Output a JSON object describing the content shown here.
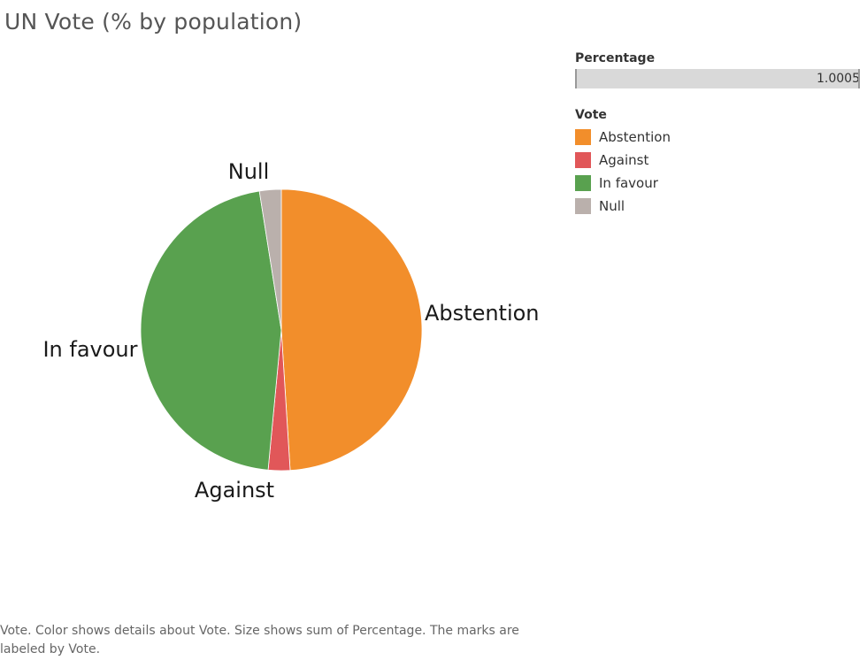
{
  "title": "UN Vote (% by population)",
  "chart_data": {
    "type": "pie",
    "title": "UN Vote (% by population)",
    "slices": [
      {
        "label": "Abstention",
        "value": 0.49,
        "color": "#f28e2b"
      },
      {
        "label": "Against",
        "value": 0.025,
        "color": "#e15759"
      },
      {
        "label": "In favour",
        "value": 0.46,
        "color": "#59a14f"
      },
      {
        "label": "Null",
        "value": 0.025,
        "color": "#bab0ac"
      }
    ]
  },
  "size_legend": {
    "title": "Percentage",
    "max_value": "1.0005"
  },
  "color_legend": {
    "title": "Vote",
    "items": [
      {
        "label": "Abstention",
        "color": "#f28e2b"
      },
      {
        "label": "Against",
        "color": "#e15759"
      },
      {
        "label": "In favour",
        "color": "#59a14f"
      },
      {
        "label": "Null",
        "color": "#bab0ac"
      }
    ]
  },
  "caption": "Vote.  Color shows details about Vote.  Size shows sum of Percentage.  The marks are labeled by Vote."
}
